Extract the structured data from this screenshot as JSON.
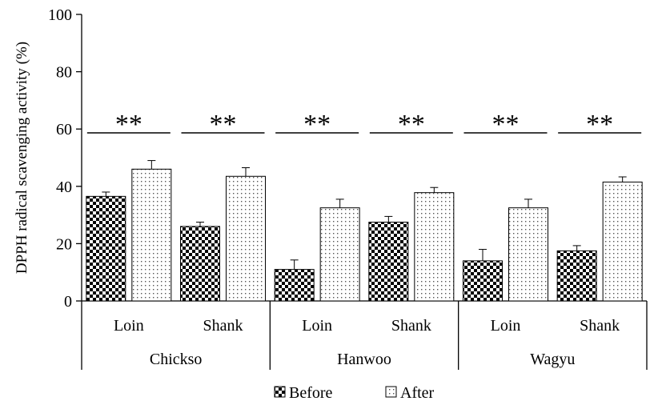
{
  "chart_data": {
    "type": "bar",
    "ylabel": "DPPH radical scavenging activity (%)",
    "ylim": [
      0,
      100
    ],
    "yticks": [
      "0",
      "20",
      "40",
      "60",
      "80",
      "100"
    ],
    "groups": [
      {
        "label": "Chickso",
        "categories": [
          "Loin",
          "Shank"
        ]
      },
      {
        "label": "Hanwoo",
        "categories": [
          "Loin",
          "Shank"
        ]
      },
      {
        "label": "Wagyu",
        "categories": [
          "Loin",
          "Shank"
        ]
      }
    ],
    "categories": [
      "Loin",
      "Shank",
      "Loin",
      "Shank",
      "Loin",
      "Shank"
    ],
    "series": [
      {
        "name": "Before",
        "values": [
          36.5,
          26,
          11,
          27.5,
          14,
          17.5
        ],
        "errors": [
          1.5,
          1.5,
          3.3,
          2,
          4,
          1.8
        ],
        "pattern": "checkerboard"
      },
      {
        "name": "After",
        "values": [
          46,
          43.5,
          32.5,
          37.8,
          32.5,
          41.5
        ],
        "errors": [
          3,
          3,
          3,
          1.8,
          3,
          1.8
        ],
        "pattern": "dotted"
      }
    ],
    "significance": [
      "**",
      "**",
      "**",
      "**",
      "**",
      "**"
    ],
    "legend": {
      "position": "bottom"
    },
    "grid": false
  }
}
